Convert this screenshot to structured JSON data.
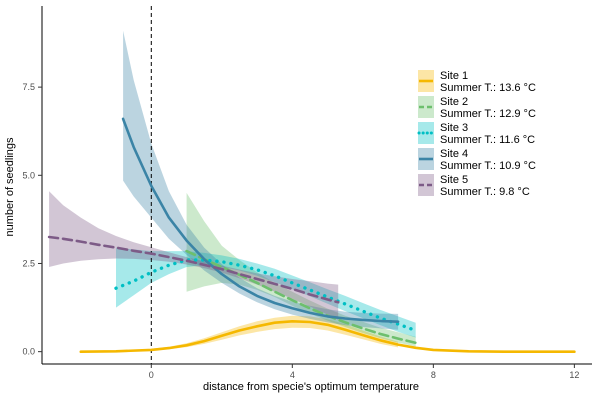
{
  "chart_data": {
    "type": "line",
    "title": "",
    "xlabel": "distance from specie's optimum temperature",
    "ylabel": "number of seedlings",
    "xlim": [
      -3.1,
      12.5
    ],
    "ylim": [
      -0.35,
      9.8
    ],
    "x_ticks": [
      {
        "value": 0,
        "label": "0"
      },
      {
        "value": 4,
        "label": "4"
      },
      {
        "value": 8,
        "label": "8"
      },
      {
        "value": 12,
        "label": "12"
      }
    ],
    "y_ticks": [
      {
        "value": 0,
        "label": "0.0"
      },
      {
        "value": 2.5,
        "label": "2.5"
      },
      {
        "value": 5,
        "label": "5.0"
      },
      {
        "value": 7.5,
        "label": "7.5"
      }
    ],
    "reference_line": {
      "x": 0,
      "style": "dashed"
    },
    "grid": false,
    "legend_position": "right",
    "series": [
      {
        "name": "Site 1\nSummer T.: 13.6 °C",
        "legend_lines": [
          "Site 1",
          "Summer T.: 13.6 °C"
        ],
        "color": "#F5B800",
        "line_style": "solid",
        "x": [
          -2.0,
          -1.0,
          0.0,
          0.5,
          1.0,
          1.5,
          2.0,
          2.5,
          3.0,
          3.5,
          4.0,
          4.5,
          5.0,
          5.5,
          6.0,
          6.5,
          7.0,
          7.5,
          8.0,
          9.0,
          10.0,
          11.0,
          12.0
        ],
        "y": [
          0.0,
          0.01,
          0.05,
          0.1,
          0.18,
          0.3,
          0.45,
          0.6,
          0.72,
          0.82,
          0.86,
          0.84,
          0.76,
          0.62,
          0.47,
          0.32,
          0.2,
          0.11,
          0.05,
          0.01,
          0.0,
          0.0,
          0.0
        ],
        "band_x": [
          0.0,
          0.5,
          1.0,
          1.5,
          2.0,
          2.5,
          3.0,
          3.5,
          4.0,
          4.5,
          5.0,
          5.5,
          6.0,
          6.5,
          7.0
        ],
        "band_lower": [
          0.03,
          0.07,
          0.13,
          0.22,
          0.34,
          0.46,
          0.56,
          0.64,
          0.68,
          0.67,
          0.6,
          0.48,
          0.35,
          0.22,
          0.12
        ],
        "band_upper": [
          0.08,
          0.14,
          0.24,
          0.38,
          0.55,
          0.72,
          0.86,
          0.96,
          1.02,
          1.0,
          0.92,
          0.78,
          0.6,
          0.43,
          0.28
        ]
      },
      {
        "name": "Site 2\nSummer T.: 12.9 °C",
        "legend_lines": [
          "Site 2",
          "Summer T.: 12.9 °C"
        ],
        "color": "#6DBF6D",
        "line_style": "longdash",
        "x": [
          1.0,
          1.5,
          2.0,
          2.5,
          3.0,
          3.5,
          4.0,
          4.5,
          5.0,
          5.5,
          6.0,
          6.5,
          7.0,
          7.5
        ],
        "y": [
          2.85,
          2.62,
          2.4,
          2.18,
          1.95,
          1.7,
          1.46,
          1.23,
          1.02,
          0.83,
          0.66,
          0.5,
          0.37,
          0.25
        ],
        "band_x": [
          1.0,
          1.5,
          2.0,
          2.5,
          3.0,
          3.5,
          4.0,
          4.5,
          5.0,
          5.5,
          6.0,
          6.5,
          7.0,
          7.5
        ],
        "band_lower": [
          1.7,
          1.85,
          1.95,
          1.9,
          1.75,
          1.55,
          1.3,
          1.08,
          0.88,
          0.7,
          0.53,
          0.38,
          0.25,
          0.15
        ],
        "band_upper": [
          4.5,
          3.7,
          3.0,
          2.6,
          2.25,
          1.95,
          1.7,
          1.45,
          1.22,
          1.02,
          0.85,
          0.68,
          0.55,
          0.42
        ]
      },
      {
        "name": "Site 3\nSummer T.: 11.6 °C",
        "legend_lines": [
          "Site 3",
          "Summer T.: 11.6 °C"
        ],
        "color": "#00BFC4",
        "line_style": "dotted",
        "x": [
          -1.0,
          -0.5,
          0.0,
          0.5,
          1.0,
          1.5,
          2.0,
          2.5,
          3.0,
          3.5,
          4.0,
          4.5,
          5.0,
          5.5,
          6.0,
          6.5,
          7.0,
          7.5
        ],
        "y": [
          1.8,
          2.0,
          2.25,
          2.45,
          2.6,
          2.6,
          2.55,
          2.45,
          2.32,
          2.15,
          1.95,
          1.75,
          1.55,
          1.35,
          1.15,
          0.95,
          0.78,
          0.6
        ],
        "band_x": [
          -1.0,
          -0.5,
          0.0,
          0.5,
          1.0,
          1.5,
          2.0,
          2.5,
          3.0,
          3.5,
          4.0,
          4.5,
          5.0,
          5.5,
          6.0,
          6.5,
          7.0,
          7.5
        ],
        "band_lower": [
          1.25,
          1.6,
          1.95,
          2.2,
          2.4,
          2.45,
          2.4,
          2.3,
          2.15,
          1.97,
          1.77,
          1.57,
          1.36,
          1.15,
          0.95,
          0.75,
          0.56,
          0.4
        ],
        "band_upper": [
          2.95,
          2.9,
          2.85,
          2.85,
          2.85,
          2.8,
          2.73,
          2.63,
          2.5,
          2.35,
          2.16,
          1.97,
          1.77,
          1.58,
          1.38,
          1.18,
          1.0,
          0.82
        ]
      },
      {
        "name": "Site 4\nSummer T.: 10.9 °C",
        "legend_lines": [
          "Site 4",
          "Summer T.: 10.9 °C"
        ],
        "color": "#3B84A6",
        "line_style": "solid",
        "x": [
          -0.8,
          -0.5,
          0.0,
          0.5,
          1.0,
          1.5,
          2.0,
          2.5,
          3.0,
          3.5,
          4.0,
          4.5,
          5.0,
          5.5,
          6.0,
          6.5,
          7.0
        ],
        "y": [
          6.6,
          5.8,
          4.7,
          3.8,
          3.15,
          2.62,
          2.2,
          1.85,
          1.58,
          1.38,
          1.23,
          1.1,
          1.0,
          0.94,
          0.9,
          0.87,
          0.85
        ],
        "band_x": [
          -0.8,
          -0.5,
          0.0,
          0.5,
          1.0,
          1.5,
          2.0,
          2.5,
          3.0,
          3.5,
          4.0,
          4.5,
          5.0,
          5.5,
          6.0,
          6.5,
          7.0
        ],
        "band_lower": [
          4.85,
          4.4,
          3.8,
          3.2,
          2.75,
          2.3,
          1.95,
          1.65,
          1.4,
          1.2,
          1.05,
          0.93,
          0.83,
          0.75,
          0.7,
          0.66,
          0.62
        ],
        "band_upper": [
          9.1,
          7.7,
          5.9,
          4.55,
          3.6,
          2.95,
          2.48,
          2.1,
          1.8,
          1.58,
          1.42,
          1.3,
          1.2,
          1.13,
          1.1,
          1.08,
          1.07
        ]
      },
      {
        "name": "Site 5\nSummer T.: 9.8 °C",
        "legend_lines": [
          "Site 5",
          "Summer T.: 9.8 °C"
        ],
        "color": "#7D5B87",
        "line_style": "longdash",
        "x": [
          -2.9,
          -2.5,
          -2.0,
          -1.5,
          -1.0,
          -0.5,
          0.0,
          0.5,
          1.0,
          1.5,
          2.0,
          2.5,
          3.0,
          3.5,
          4.0,
          4.5,
          5.0,
          5.3
        ],
        "y": [
          3.25,
          3.2,
          3.12,
          3.03,
          2.95,
          2.86,
          2.78,
          2.68,
          2.58,
          2.46,
          2.34,
          2.2,
          2.06,
          1.92,
          1.78,
          1.62,
          1.48,
          1.4
        ],
        "band_x": [
          -2.9,
          -2.5,
          -2.0,
          -1.5,
          -1.0,
          -0.5,
          0.0,
          0.5,
          1.0,
          1.5,
          2.0,
          2.5,
          3.0,
          3.5,
          4.0,
          4.5,
          5.0,
          5.3
        ],
        "band_lower": [
          2.4,
          2.5,
          2.58,
          2.62,
          2.64,
          2.63,
          2.6,
          2.55,
          2.47,
          2.37,
          2.24,
          2.08,
          1.9,
          1.7,
          1.5,
          1.28,
          1.05,
          0.9
        ],
        "band_upper": [
          4.55,
          4.15,
          3.8,
          3.5,
          3.28,
          3.1,
          2.96,
          2.82,
          2.68,
          2.56,
          2.44,
          2.33,
          2.22,
          2.14,
          2.06,
          2.0,
          1.93,
          1.9
        ]
      }
    ]
  }
}
